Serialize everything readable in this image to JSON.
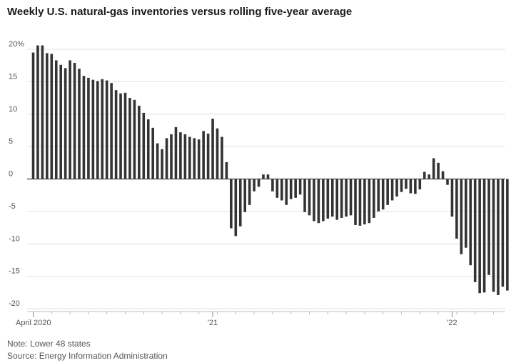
{
  "title": "Weekly U.S. natural-gas inventories versus rolling five-year average",
  "note": "Note: Lower 48 states",
  "source": "Source: Energy Information Administration",
  "colors": {
    "bar": "#333333",
    "grid": "#e0e0e0",
    "zero_line": "#444444"
  },
  "chart_data": {
    "type": "bar",
    "title": "Weekly U.S. natural-gas inventories versus rolling five-year average",
    "xlabel": "",
    "ylabel": "",
    "ylim": [
      -20,
      20
    ],
    "yticks": [
      20,
      15,
      10,
      5,
      0,
      -5,
      -10,
      -15,
      -20
    ],
    "ytick_labels": [
      "20%",
      "15",
      "10",
      "5",
      "0",
      "-5",
      "-10",
      "-15",
      "-20"
    ],
    "xtick_labels": [
      {
        "label": "April 2020",
        "week_index": 0
      },
      {
        "label": "'21",
        "week_index": 39
      },
      {
        "label": "'22",
        "week_index": 91
      }
    ],
    "grid": true,
    "values": [
      19.5,
      20.6,
      20.6,
      19.4,
      19.3,
      18.3,
      17.6,
      17.1,
      18.3,
      17.9,
      17.0,
      15.9,
      15.6,
      15.3,
      15.1,
      15.4,
      15.2,
      14.8,
      13.7,
      13.2,
      13.3,
      12.5,
      12.2,
      11.3,
      10.2,
      9.2,
      7.9,
      5.5,
      4.6,
      6.3,
      6.9,
      8.0,
      7.2,
      6.9,
      6.5,
      6.3,
      6.1,
      7.4,
      7.0,
      9.3,
      7.8,
      6.5,
      2.6,
      -7.6,
      -8.8,
      -7.3,
      -5.1,
      -4.0,
      -1.9,
      -1.2,
      0.7,
      0.7,
      -1.9,
      -2.9,
      -3.3,
      -4.0,
      -3.1,
      -2.9,
      -2.4,
      -5.1,
      -5.6,
      -6.5,
      -6.8,
      -6.5,
      -6.1,
      -5.8,
      -6.3,
      -6.0,
      -5.8,
      -5.6,
      -7.1,
      -7.2,
      -7.0,
      -6.8,
      -6.0,
      -5.0,
      -4.7,
      -4.0,
      -3.3,
      -2.7,
      -2.0,
      -1.5,
      -2.2,
      -2.3,
      -1.6,
      1.1,
      0.7,
      3.2,
      2.5,
      1.2,
      -0.9,
      -5.8,
      -9.2,
      -11.6,
      -10.6,
      -13.3,
      -15.9,
      -17.6,
      -17.5,
      -14.8,
      -17.4,
      -17.9,
      -16.6,
      -17.2
    ]
  }
}
